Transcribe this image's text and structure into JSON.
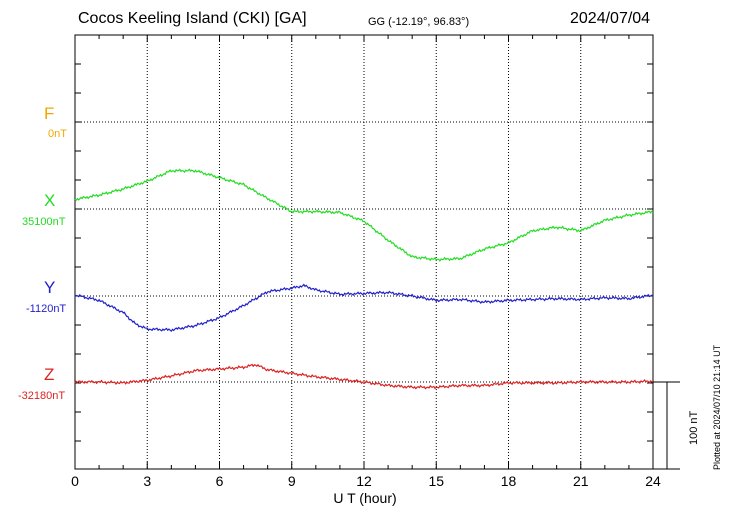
{
  "header": {
    "station": "Cocos Keeling Island (CKI)  [GA]",
    "coords": "GG (-12.19°,  96.83°)",
    "date": "2024/07/04"
  },
  "plotted_note": "Plotted at 2024/07/10 21:14 UT",
  "scale_label": "100 nT",
  "colors": {
    "F": "#f0a800",
    "X": "#22dd22",
    "Y": "#2222cc",
    "Z": "#dd2222"
  },
  "components": [
    {
      "key": "F",
      "label": "F",
      "baseline": "0nT"
    },
    {
      "key": "X",
      "label": "X",
      "baseline": "35100nT"
    },
    {
      "key": "Y",
      "label": "Y",
      "baseline": "-1120nT"
    },
    {
      "key": "Z",
      "label": "Z",
      "baseline": "-32180nT"
    }
  ],
  "chart_data": {
    "type": "line",
    "xlabel": "U T (hour)",
    "xlim": [
      0,
      24
    ],
    "xticks": [
      "0",
      "3",
      "6",
      "9",
      "12",
      "15",
      "18",
      "21",
      "24"
    ],
    "grid": true,
    "units": "nT",
    "series": [
      {
        "name": "X",
        "baseline_nT": 35100,
        "x": [
          0,
          1,
          2,
          3,
          3.5,
          4,
          5,
          6,
          7,
          8,
          9,
          10,
          11,
          12,
          13,
          14,
          15,
          16,
          17,
          18,
          19,
          20,
          21,
          22,
          23,
          24
        ],
        "values": [
          35111,
          35116,
          35123,
          35132,
          35138,
          35144,
          35144,
          35136,
          35128,
          35112,
          35097,
          35097,
          35096,
          35086,
          35064,
          35045,
          35042,
          35043,
          35054,
          35061,
          35075,
          35079,
          35075,
          35087,
          35093,
          35097
        ]
      },
      {
        "name": "Y",
        "baseline_nT": -1120,
        "x": [
          0,
          1,
          2,
          2.5,
          3,
          4,
          5,
          6,
          7,
          8,
          9,
          9.5,
          10,
          11,
          12,
          13,
          14,
          15,
          16,
          17,
          18,
          19,
          20,
          21,
          22,
          23,
          24
        ],
        "values": [
          -1119,
          -1125,
          -1139,
          -1152,
          -1158,
          -1159,
          -1154,
          -1145,
          -1131,
          -1115,
          -1111,
          -1108,
          -1113,
          -1118,
          -1117,
          -1116,
          -1120,
          -1125,
          -1124,
          -1127,
          -1125,
          -1124,
          -1123,
          -1124,
          -1122,
          -1123,
          -1119
        ]
      },
      {
        "name": "Z",
        "baseline_nT": -32180,
        "x": [
          0,
          1,
          2,
          3,
          4,
          5,
          6,
          7,
          7.5,
          8,
          9,
          10,
          11,
          12,
          13,
          14,
          15,
          16,
          17,
          18,
          19,
          20,
          21,
          22,
          23,
          24
        ],
        "values": [
          -32180,
          -32180,
          -32181,
          -32178,
          -32173,
          -32167,
          -32165,
          -32163,
          -32160,
          -32166,
          -32170,
          -32174,
          -32177,
          -32180,
          -32184,
          -32186,
          -32186,
          -32184,
          -32184,
          -32181,
          -32181,
          -32181,
          -32180,
          -32180,
          -32180,
          -32179
        ]
      }
    ]
  }
}
